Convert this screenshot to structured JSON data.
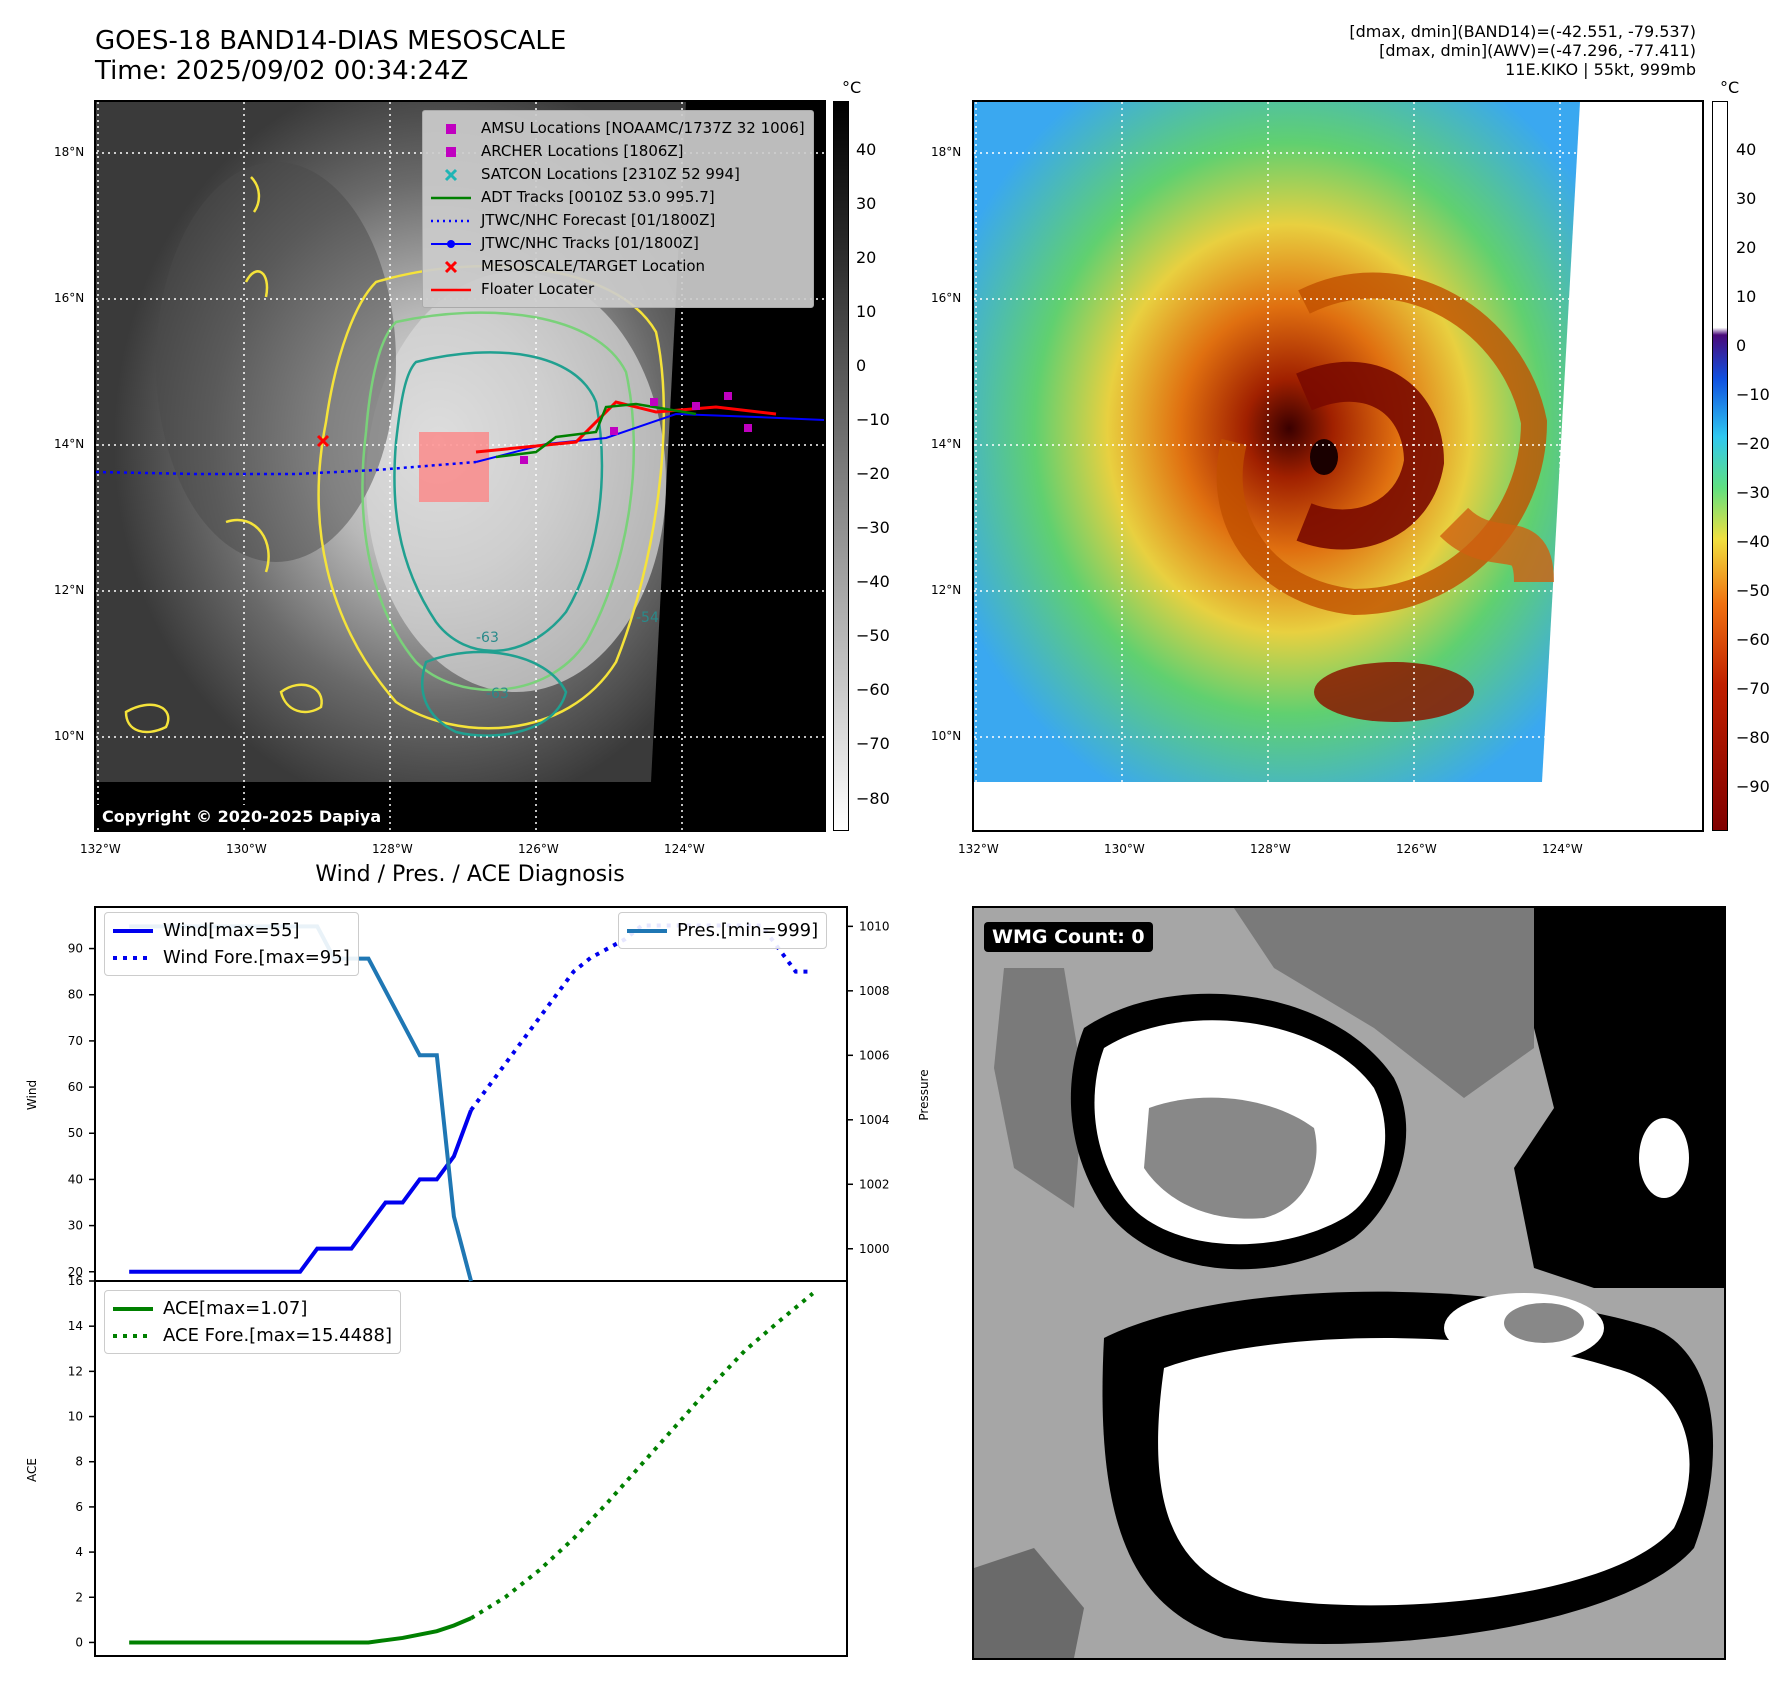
{
  "header": {
    "title_line1": "GOES-18 BAND14-DIAS MESOSCALE",
    "title_line2": "Time: 2025/09/02 00:34:24Z",
    "right_line1": "[dmax, dmin](BAND14)=(-42.551, -79.537)",
    "right_line2": "[dmax, dmin](AWV)=(-47.296, -77.411)",
    "right_line3": "11E.KIKO | 55kt, 999mb"
  },
  "map": {
    "lat_ticks": [
      "18°N",
      "16°N",
      "14°N",
      "12°N",
      "10°N"
    ],
    "lon_ticks": [
      "132°W",
      "130°W",
      "128°W",
      "126°W",
      "124°W"
    ],
    "copyright": "Copyright © 2020-2025 Dapiya",
    "legend": [
      {
        "label": "AMSU Locations [NOAAMC/1737Z 32 1006]",
        "kind": "square",
        "color": "#c000c0"
      },
      {
        "label": "ARCHER Locations [1806Z]",
        "kind": "square",
        "color": "#c000c0"
      },
      {
        "label": "SATCON Locations [2310Z 52 994]",
        "kind": "x",
        "color": "#1fb5b5"
      },
      {
        "label": "ADT Tracks [0010Z 53.0 995.7]",
        "kind": "line",
        "color": "#008000"
      },
      {
        "label": "JTWC/NHC Forecast [01/1800Z]",
        "kind": "dotted",
        "color": "#0000ff"
      },
      {
        "label": "JTWC/NHC Tracks [01/1800Z]",
        "kind": "linedot",
        "color": "#0000ff"
      },
      {
        "label": "MESOSCALE/TARGET Location",
        "kind": "x",
        "color": "#ff0000"
      },
      {
        "label": "Floater Locater",
        "kind": "line",
        "color": "#ff0000"
      }
    ],
    "colorbar_unit": "°C",
    "colorbar_gray_ticks": [
      "40",
      "30",
      "20",
      "10",
      "0",
      "−10",
      "−20",
      "−30",
      "−40",
      "−50",
      "−60",
      "−70",
      "−80"
    ],
    "colorbar_color_ticks": [
      "40",
      "30",
      "20",
      "10",
      "0",
      "−10",
      "−20",
      "−30",
      "−40",
      "−50",
      "−60",
      "−70",
      "−80",
      "−90"
    ],
    "contour_labels": [
      "-63",
      "-54",
      "-63"
    ]
  },
  "chart_data": [
    {
      "type": "line",
      "title": "Wind / Pres. / ACE Diagnosis",
      "ylabel": "Wind",
      "ylabel_right": "Pressure",
      "ylim": [
        18,
        99
      ],
      "ylim_right": [
        999.0,
        1010.6
      ],
      "yticks": [
        20,
        30,
        40,
        50,
        60,
        70,
        80,
        90
      ],
      "yticks_right": [
        1000,
        1002,
        1004,
        1006,
        1008,
        1010
      ],
      "series": [
        {
          "name": "Wind[max=55]",
          "style": "solid",
          "color": "#0000ee",
          "x": [
            0,
            1,
            2,
            3,
            4,
            5,
            6,
            7,
            8,
            9,
            10,
            11,
            12,
            13,
            14,
            15,
            16,
            17,
            18,
            19,
            20
          ],
          "values": [
            20,
            20,
            20,
            20,
            20,
            20,
            20,
            20,
            20,
            20,
            20,
            25,
            25,
            25,
            30,
            35,
            35,
            40,
            40,
            45,
            55
          ]
        },
        {
          "name": "Wind Fore.[max=95]",
          "style": "dotted",
          "color": "#0000ee",
          "x": [
            20,
            21,
            22,
            23,
            24,
            25,
            26,
            27,
            28,
            29,
            30,
            31,
            32,
            33,
            34,
            35,
            36,
            37,
            38,
            39,
            40
          ],
          "values": [
            55,
            60,
            65,
            70,
            75,
            80,
            85,
            88,
            90,
            92,
            95,
            95,
            95,
            95,
            95,
            95,
            95,
            95,
            90,
            85,
            85
          ]
        },
        {
          "name": "Pres.[min=999]",
          "style": "solid",
          "color": "#1f77b4",
          "axis": "right",
          "x": [
            0,
            1,
            2,
            3,
            4,
            5,
            6,
            7,
            8,
            9,
            10,
            11,
            12,
            13,
            14,
            15,
            16,
            17,
            18,
            19,
            20
          ],
          "values": [
            1010,
            1010,
            1010,
            1010,
            1010,
            1010,
            1010,
            1010,
            1010,
            1010,
            1010,
            1010,
            1009,
            1009,
            1009,
            1008,
            1007,
            1006,
            1006,
            1001,
            999
          ]
        }
      ]
    },
    {
      "type": "line",
      "ylabel": "ACE",
      "ylim": [
        -0.6,
        16
      ],
      "yticks": [
        0,
        2,
        4,
        6,
        8,
        10,
        12,
        14,
        16
      ],
      "series": [
        {
          "name": "ACE[max=1.07]",
          "style": "solid",
          "color": "#008000",
          "x": [
            0,
            1,
            2,
            3,
            4,
            5,
            6,
            7,
            8,
            9,
            10,
            11,
            12,
            13,
            14,
            15,
            16,
            17,
            18,
            19,
            20
          ],
          "values": [
            0,
            0,
            0,
            0,
            0,
            0,
            0,
            0,
            0,
            0,
            0,
            0,
            0,
            0,
            0,
            0.1,
            0.2,
            0.35,
            0.5,
            0.75,
            1.07
          ]
        },
        {
          "name": "ACE Fore.[max=15.4488]",
          "style": "dotted",
          "color": "#008000",
          "x": [
            20,
            22,
            24,
            26,
            28,
            30,
            32,
            34,
            36,
            38,
            40
          ],
          "values": [
            1.07,
            2.0,
            3.2,
            4.6,
            6.2,
            7.9,
            9.6,
            11.3,
            12.9,
            14.2,
            15.4488
          ]
        }
      ]
    }
  ],
  "wmg": {
    "label": "WMG Count: 0"
  }
}
